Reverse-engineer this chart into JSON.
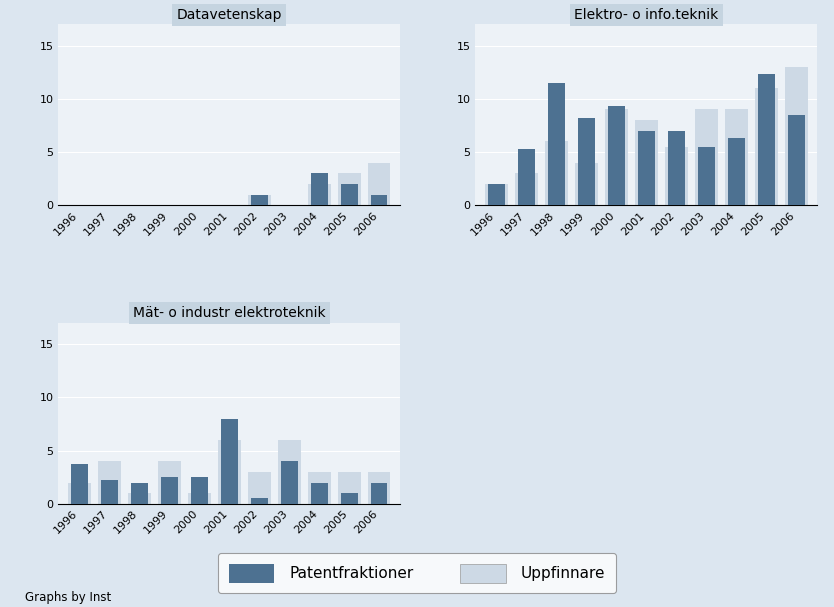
{
  "years": [
    "1996",
    "1997",
    "1998",
    "1999",
    "2000",
    "2001",
    "2002",
    "2003",
    "2004",
    "2005",
    "2006"
  ],
  "subplots": [
    {
      "title": "Datavetenskap",
      "patent": [
        0,
        0,
        0,
        0,
        0,
        0,
        1,
        0,
        3,
        2,
        1
      ],
      "uppfinnare": [
        0,
        0,
        0,
        0,
        0,
        0,
        1,
        0,
        2,
        3,
        4
      ]
    },
    {
      "title": "Elektro- o info.teknik",
      "patent": [
        2.0,
        5.3,
        11.5,
        8.2,
        9.3,
        7.0,
        7.0,
        5.5,
        6.3,
        12.3,
        8.5
      ],
      "uppfinnare": [
        2.0,
        3.0,
        6.0,
        4.0,
        9.0,
        8.0,
        5.5,
        9.0,
        9.0,
        11.0,
        13.0
      ]
    },
    {
      "title": "Mät- o industr elektroteknik",
      "patent": [
        3.7,
        2.2,
        2.0,
        2.5,
        2.5,
        8.0,
        0.5,
        4.0,
        2.0,
        1.0,
        2.0
      ],
      "uppfinnare": [
        2.0,
        4.0,
        1.0,
        4.0,
        1.0,
        6.0,
        3.0,
        6.0,
        3.0,
        3.0,
        3.0
      ]
    }
  ],
  "patent_color": "#4d7191",
  "uppfinnare_color": "#cdd9e5",
  "background_color": "#dce6f0",
  "plot_bg_color": "#edf2f7",
  "title_bg_color": "#c5d4e0",
  "ylim": [
    0,
    17
  ],
  "yticks": [
    0,
    5,
    10,
    15
  ],
  "patent_bar_width": 0.55,
  "uppfinnare_bar_width": 0.75,
  "legend_patent": "Patentfraktioner",
  "legend_uppfinnare": "Uppfinnare",
  "footer": "Graphs by Inst"
}
